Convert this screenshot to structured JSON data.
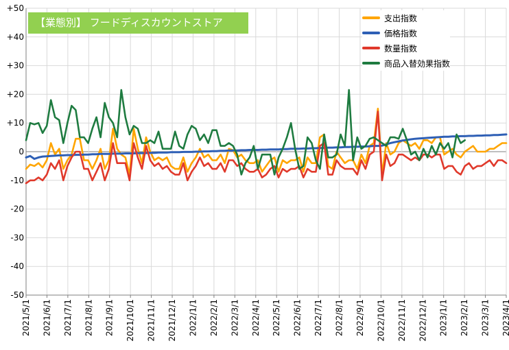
{
  "chart_data": {
    "type": "line",
    "title": "【業態別】 フードディスカウントストア",
    "ylim": [
      -50,
      50
    ],
    "yticks": [
      "+50",
      "+40",
      "+30",
      "+20",
      "+10",
      "0",
      "-10",
      "-20",
      "-30",
      "-40",
      "-50"
    ],
    "ytick_values": [
      50,
      40,
      30,
      20,
      10,
      0,
      -10,
      -20,
      -30,
      -40,
      -50
    ],
    "x_labels": [
      "2021/5/1",
      "2021/6/1",
      "2021/7/1",
      "2021/8/1",
      "2021/9/1",
      "2021/10/1",
      "2021/11/1",
      "2021/12/1",
      "2022/1/1",
      "2022/2/1",
      "2022/3/1",
      "2022/4/1",
      "2022/5/1",
      "2022/6/1",
      "2022/7/1",
      "2022/8/1",
      "2022/9/1",
      "2022/10/1",
      "2022/11/1",
      "2022/12/1",
      "2023/1/1",
      "2023/2/1",
      "2023/3/1",
      "2023/4/1"
    ],
    "grid": true,
    "legend_position": "top-right",
    "series": [
      {
        "name": "支出指数",
        "color": "#ffa500",
        "values": [
          -6,
          -4.5,
          -5,
          -4,
          -5.5,
          -3,
          3,
          -1,
          1,
          -6,
          -3,
          -1,
          4.5,
          4.5,
          -3,
          -3,
          -6,
          -3,
          1,
          -6,
          -3,
          8,
          1,
          -1,
          -2,
          -8,
          8,
          1,
          -4,
          5,
          0,
          -3,
          -2,
          -3,
          -2,
          -5,
          -6,
          -6,
          -2,
          -7,
          -4,
          -2,
          1,
          -2,
          -1,
          -3,
          -3,
          -1,
          -4,
          1,
          0.5,
          -2,
          -1,
          -3,
          -4,
          -4,
          -3,
          -7,
          -5,
          -3,
          -2,
          -7,
          -3,
          -4,
          -3,
          -3,
          -2,
          -7,
          -2,
          -4,
          -4,
          5,
          6,
          -5,
          -6,
          0,
          -2,
          -4,
          -3,
          -3,
          -6,
          -1,
          -4,
          2,
          3,
          15,
          -8,
          3,
          -1,
          0,
          3,
          4,
          3,
          2,
          3,
          1,
          4,
          4,
          3,
          5,
          5,
          -1,
          0,
          1,
          -1,
          -2,
          0,
          1,
          2,
          0,
          0,
          0,
          1,
          1,
          2,
          3,
          3
        ]
      },
      {
        "name": "価格指数",
        "color": "#2e5fb5",
        "values": [
          -2,
          -1.5,
          -2.5,
          -2,
          -1.7,
          -1.6,
          -1.5,
          -1.4,
          -1.3,
          -1.3,
          -1.2,
          -1.2,
          -1.1,
          -1.1,
          -1.0,
          -1.0,
          -0.9,
          -0.9,
          -0.8,
          -0.8,
          -0.8,
          -0.7,
          -0.7,
          -0.7,
          -0.6,
          -0.6,
          -0.6,
          -0.5,
          -0.5,
          -0.5,
          -0.4,
          -0.4,
          -0.3,
          -0.3,
          -0.3,
          -0.2,
          -0.2,
          -0.2,
          -0.1,
          -0.1,
          -0.1,
          0,
          0,
          0.1,
          0.1,
          0.2,
          0.2,
          0.3,
          0.3,
          0.4,
          0.4,
          0.4,
          0.5,
          0.5,
          0.6,
          0.6,
          0.6,
          0.7,
          0.7,
          0.8,
          0.8,
          0.8,
          0.9,
          0.9,
          1.0,
          1.0,
          1.0,
          1.1,
          1.1,
          1.2,
          1.2,
          1.3,
          1.3,
          1.4,
          1.4,
          1.5,
          1.5,
          1.6,
          1.6,
          1.7,
          1.7,
          1.8,
          1.8,
          1.9,
          2.0,
          2.0,
          2.1,
          2.5,
          3.0,
          3.3,
          3.6,
          3.9,
          4.1,
          4.3,
          4.5,
          4.6,
          4.7,
          4.8,
          4.9,
          5.0,
          5.1,
          5.2,
          5.2,
          5.3,
          5.3,
          5.4,
          5.4,
          5.5,
          5.5,
          5.6,
          5.6,
          5.7,
          5.7,
          5.8,
          5.8,
          5.9,
          6.0
        ]
      },
      {
        "name": "数量指数",
        "color": "#e0392b",
        "values": [
          -11,
          -10,
          -10,
          -9,
          -10,
          -8,
          -4,
          -6,
          -3,
          -10,
          -5,
          -2,
          0,
          0,
          -6,
          -6,
          -10,
          -7,
          -4,
          -10,
          -6,
          3,
          -4,
          -4,
          -4,
          -10,
          3,
          -2,
          -6,
          2,
          -3,
          -5,
          -4,
          -6,
          -5,
          -7,
          -8,
          -8,
          -4,
          -10,
          -7,
          -5,
          -2,
          -5,
          -4,
          -6,
          -6,
          -4,
          -7,
          -3,
          -3,
          -5,
          -4,
          -6,
          -7,
          -7,
          -6,
          -9,
          -8,
          -6,
          -5,
          -9,
          -6,
          -7,
          -6,
          -6,
          -5,
          -9,
          -6,
          -7,
          -7,
          2,
          3,
          -8,
          -8,
          -3,
          -5,
          -6,
          -6,
          -6,
          -8,
          -3,
          -6,
          -1,
          0,
          14,
          -10,
          -1,
          -5,
          -4,
          -1,
          -1,
          -2,
          -3,
          -2,
          -3,
          -1,
          -1,
          -2,
          -1,
          -1,
          -6,
          -5,
          -5,
          -7,
          -8,
          -5,
          -4,
          -6,
          -5,
          -5,
          -4,
          -3,
          -5,
          -3,
          -3,
          -4
        ]
      },
      {
        "name": "商品入替効果指数",
        "color": "#1e7b40",
        "values": [
          4,
          10,
          9.5,
          10,
          6.5,
          9,
          18,
          12,
          11,
          3,
          10,
          16,
          14.5,
          5,
          5,
          3,
          8,
          12,
          5,
          17,
          12,
          10,
          5,
          21.5,
          12,
          6,
          9,
          8,
          3,
          3,
          4,
          3,
          7,
          1,
          1,
          1,
          7,
          2,
          1,
          6,
          9,
          8,
          4,
          6,
          3,
          7.5,
          7.5,
          2,
          2,
          3,
          2,
          -1,
          -8,
          -4,
          -2,
          2,
          -6,
          -1,
          -1,
          -1,
          -8,
          -2,
          1,
          5,
          10,
          1,
          -6,
          -5,
          5,
          3,
          -3,
          -6,
          6,
          -2,
          -2,
          -1,
          6,
          2,
          21.5,
          -3,
          5,
          1,
          2,
          4.5,
          5,
          4,
          3,
          2,
          5,
          5,
          4.5,
          8,
          4,
          -1,
          0,
          -3,
          1,
          -2,
          2,
          -1,
          3,
          1,
          3,
          -2,
          6,
          3,
          4
        ]
      }
    ]
  }
}
